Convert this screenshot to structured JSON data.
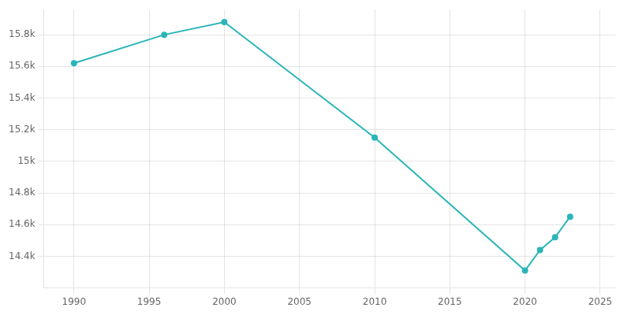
{
  "chart_data": {
    "type": "line",
    "x": [
      1990,
      1996,
      2000,
      2010,
      2020,
      2021,
      2022,
      2023
    ],
    "values": [
      15620,
      15800,
      15880,
      15150,
      14310,
      14440,
      14520,
      14650
    ],
    "color": "#2BB5B8",
    "marker": "circle",
    "xlim": [
      1988,
      2026
    ],
    "xticks": [
      1990,
      1995,
      2000,
      2005,
      2010,
      2015,
      2020,
      2025
    ],
    "ylim": [
      14200,
      15960
    ],
    "yticks": [
      {
        "value": 14400,
        "label": "14.4k"
      },
      {
        "value": 14600,
        "label": "14.6k"
      },
      {
        "value": 14800,
        "label": "14.8k"
      },
      {
        "value": 15000,
        "label": "15k"
      },
      {
        "value": 15200,
        "label": "15.2k"
      },
      {
        "value": 15400,
        "label": "15.4k"
      },
      {
        "value": 15600,
        "label": "15.6k"
      },
      {
        "value": 15800,
        "label": "15.8k"
      }
    ],
    "grid": true
  }
}
